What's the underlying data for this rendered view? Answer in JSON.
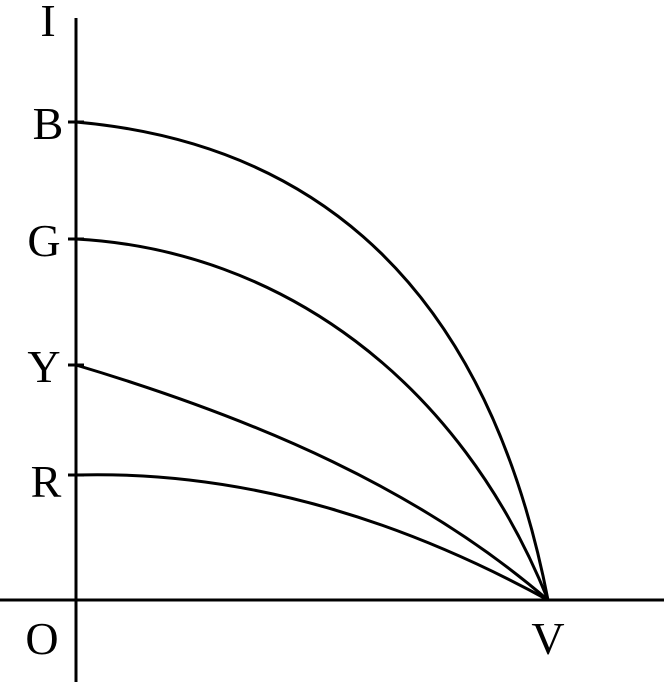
{
  "axes": {
    "y_label": "I",
    "origin_label": "O",
    "x_end_label": "V"
  },
  "curves": [
    {
      "label": "B",
      "intercept": 4.0
    },
    {
      "label": "G",
      "intercept": 3.0
    },
    {
      "label": "Y",
      "intercept": 1.9
    },
    {
      "label": "R",
      "intercept": 1.05
    }
  ],
  "colors": {
    "line": "#000000",
    "background": "#ffffff"
  }
}
